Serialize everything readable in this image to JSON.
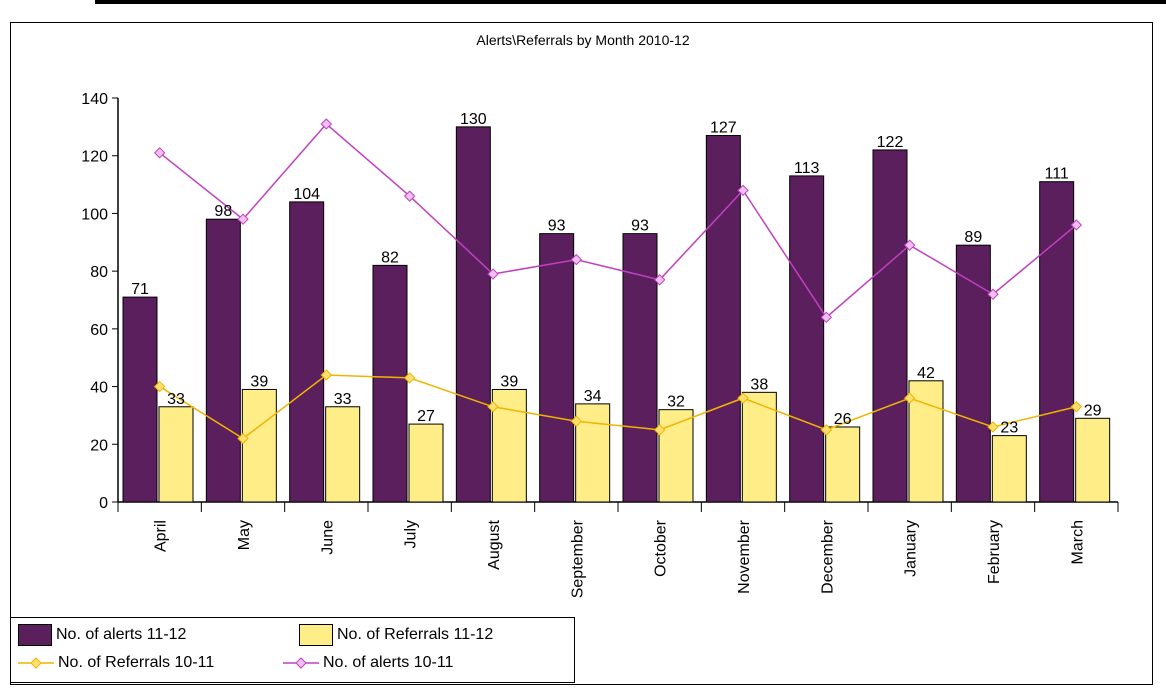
{
  "chart_data": {
    "type": "bar",
    "title": "Alerts\\Referrals by Month 2010-12",
    "categories": [
      "April",
      "May",
      "June",
      "July",
      "August",
      "September",
      "October",
      "November",
      "December",
      "January",
      "February",
      "March"
    ],
    "ylim": [
      0,
      140
    ],
    "yticks": [
      0,
      20,
      40,
      60,
      80,
      100,
      120,
      140
    ],
    "grid": false,
    "legend_position": "bottom-left",
    "series": [
      {
        "name": "No. of alerts 11-12",
        "kind": "bar",
        "color": "#5c1f5e",
        "values": [
          71,
          98,
          104,
          82,
          130,
          93,
          93,
          127,
          113,
          122,
          89,
          111
        ]
      },
      {
        "name": "No. of Referrals 11-12",
        "kind": "bar",
        "color": "#ffee88",
        "values": [
          33,
          39,
          33,
          27,
          39,
          34,
          32,
          38,
          26,
          42,
          23,
          29
        ]
      },
      {
        "name": "No. of Referrals 10-11",
        "kind": "line",
        "color": "#f0b400",
        "values": [
          40,
          22,
          44,
          43,
          33,
          28,
          25,
          36,
          25,
          36,
          26,
          33
        ]
      },
      {
        "name": "No. of alerts 10-11",
        "kind": "line",
        "color": "#c040c0",
        "values": [
          121,
          98,
          131,
          106,
          79,
          84,
          77,
          108,
          64,
          89,
          72,
          96
        ]
      }
    ]
  }
}
